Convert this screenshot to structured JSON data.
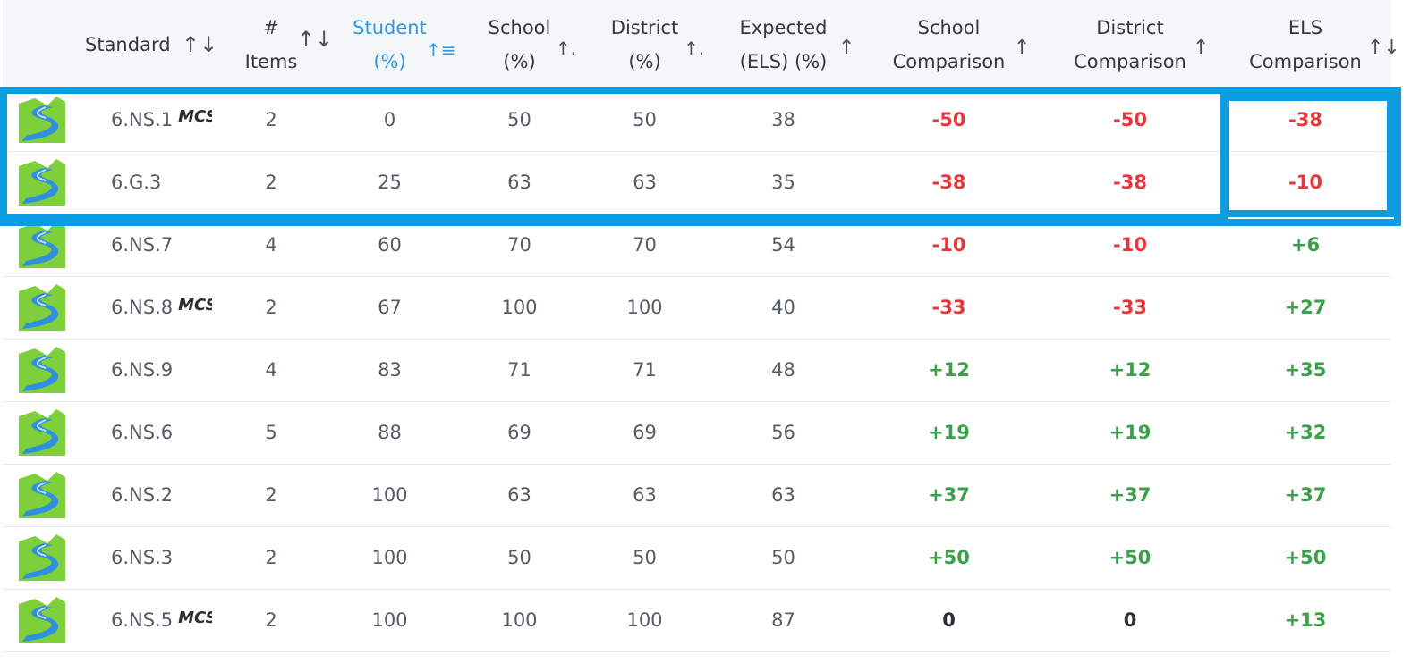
{
  "headers": {
    "standard": "Standard",
    "items_line1": "#",
    "items_line2": "Items",
    "student_line1": "Student",
    "student_line2": "(%)",
    "school_line1": "School",
    "school_line2": "(%)",
    "district_line1": "District",
    "district_line2": "(%)",
    "expected_line1": "Expected",
    "expected_line2": "(ELS) (%)",
    "school_cmp_line1": "School",
    "school_cmp_line2": "Comparison",
    "district_cmp_line1": "District",
    "district_cmp_line2": "Comparison",
    "els_cmp_line1": "ELS",
    "els_cmp_line2": "Comparison"
  },
  "sort_icons": {
    "standard": "↑↓",
    "items": "↑↓",
    "student": "↑≡",
    "school": "↑.",
    "district": "↑.",
    "expected": "↑",
    "school_cmp": "↑",
    "district_cmp": "↑",
    "els_cmp": "↑↓"
  },
  "colors": {
    "active_header": "#3197de",
    "negative": "#e8353a",
    "positive": "#3aa14a",
    "highlight": "#0b9de0",
    "logo_green": "#7fcf3a",
    "logo_blue": "#2f8fe0"
  },
  "rows": [
    {
      "icon": "river-path-icon",
      "standard": "6.NS.1",
      "tag": "MCS",
      "items": "2",
      "student": "0",
      "school": "50",
      "district": "50",
      "expected": "38",
      "school_cmp": "-50",
      "district_cmp": "-50",
      "els_cmp": "-38"
    },
    {
      "icon": "river-path-icon",
      "standard": "6.G.3",
      "tag": "",
      "items": "2",
      "student": "25",
      "school": "63",
      "district": "63",
      "expected": "35",
      "school_cmp": "-38",
      "district_cmp": "-38",
      "els_cmp": "-10"
    },
    {
      "icon": "river-path-icon",
      "standard": "6.NS.7",
      "tag": "",
      "items": "4",
      "student": "60",
      "school": "70",
      "district": "70",
      "expected": "54",
      "school_cmp": "-10",
      "district_cmp": "-10",
      "els_cmp": "+6"
    },
    {
      "icon": "river-path-icon",
      "standard": "6.NS.8",
      "tag": "MCS",
      "items": "2",
      "student": "67",
      "school": "100",
      "district": "100",
      "expected": "40",
      "school_cmp": "-33",
      "district_cmp": "-33",
      "els_cmp": "+27"
    },
    {
      "icon": "river-path-icon",
      "standard": "6.NS.9",
      "tag": "",
      "items": "4",
      "student": "83",
      "school": "71",
      "district": "71",
      "expected": "48",
      "school_cmp": "+12",
      "district_cmp": "+12",
      "els_cmp": "+35"
    },
    {
      "icon": "river-path-icon",
      "standard": "6.NS.6",
      "tag": "",
      "items": "5",
      "student": "88",
      "school": "69",
      "district": "69",
      "expected": "56",
      "school_cmp": "+19",
      "district_cmp": "+19",
      "els_cmp": "+32"
    },
    {
      "icon": "river-path-icon",
      "standard": "6.NS.2",
      "tag": "",
      "items": "2",
      "student": "100",
      "school": "63",
      "district": "63",
      "expected": "63",
      "school_cmp": "+37",
      "district_cmp": "+37",
      "els_cmp": "+37"
    },
    {
      "icon": "river-path-icon",
      "standard": "6.NS.3",
      "tag": "",
      "items": "2",
      "student": "100",
      "school": "50",
      "district": "50",
      "expected": "50",
      "school_cmp": "+50",
      "district_cmp": "+50",
      "els_cmp": "+50"
    },
    {
      "icon": "river-path-icon",
      "standard": "6.NS.5",
      "tag": "MCS",
      "items": "2",
      "student": "100",
      "school": "100",
      "district": "100",
      "expected": "87",
      "school_cmp": "0",
      "district_cmp": "0",
      "els_cmp": "+13"
    }
  ]
}
